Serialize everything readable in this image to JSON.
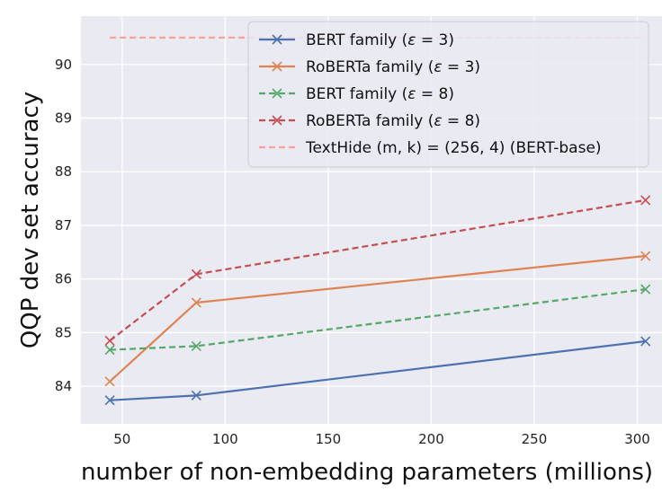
{
  "chart_data": {
    "type": "line",
    "title": "",
    "xlabel": "number of non-embedding parameters (millions)",
    "ylabel": "QQP dev set accuracy",
    "xlim": [
      30,
      312
    ],
    "ylim": [
      83.3,
      90.9
    ],
    "xticks": [
      50,
      100,
      150,
      200,
      250,
      300
    ],
    "yticks": [
      84,
      85,
      86,
      87,
      88,
      89,
      90
    ],
    "grid": true,
    "legend_position": "upper-right",
    "series": [
      {
        "name": "BERT family (ε = 3)",
        "legend_label": {
          "prefix": "BERT family (",
          "symbol": "ε",
          "suffix": " = 3)"
        },
        "color": "#4c72b0",
        "line_style": "solid",
        "marker": "x",
        "x": [
          44,
          86,
          304
        ],
        "y": [
          83.74,
          83.83,
          84.84
        ]
      },
      {
        "name": "RoBERTa family (ε = 3)",
        "legend_label": {
          "prefix": "RoBERTa family (",
          "symbol": "ε",
          "suffix": " = 3)"
        },
        "color": "#dd8452",
        "line_style": "solid",
        "marker": "x",
        "x": [
          44,
          86,
          304
        ],
        "y": [
          84.09,
          85.56,
          86.43
        ]
      },
      {
        "name": "BERT family (ε = 8)",
        "legend_label": {
          "prefix": "BERT family (",
          "symbol": "ε",
          "suffix": " = 8)"
        },
        "color": "#55a868",
        "line_style": "dashed",
        "marker": "x",
        "x": [
          44,
          86,
          304
        ],
        "y": [
          84.68,
          84.75,
          85.81
        ]
      },
      {
        "name": "RoBERTa family (ε = 8)",
        "legend_label": {
          "prefix": "RoBERTa family (",
          "symbol": "ε",
          "suffix": " = 8)"
        },
        "color": "#c44e52",
        "line_style": "dashed",
        "marker": "x",
        "x": [
          44,
          86,
          304
        ],
        "y": [
          84.85,
          86.09,
          87.47
        ]
      },
      {
        "name": "TextHide (m, k) = (256, 4) (BERT-base)",
        "legend_label": {
          "prefix": "TextHide (m, k) = (256, 4) (BERT-base)",
          "symbol": "",
          "suffix": ""
        },
        "color": "#ff9f9b",
        "line_style": "dashed",
        "marker": "none",
        "x": [
          44,
          304
        ],
        "y": [
          90.5,
          90.5
        ]
      }
    ]
  }
}
